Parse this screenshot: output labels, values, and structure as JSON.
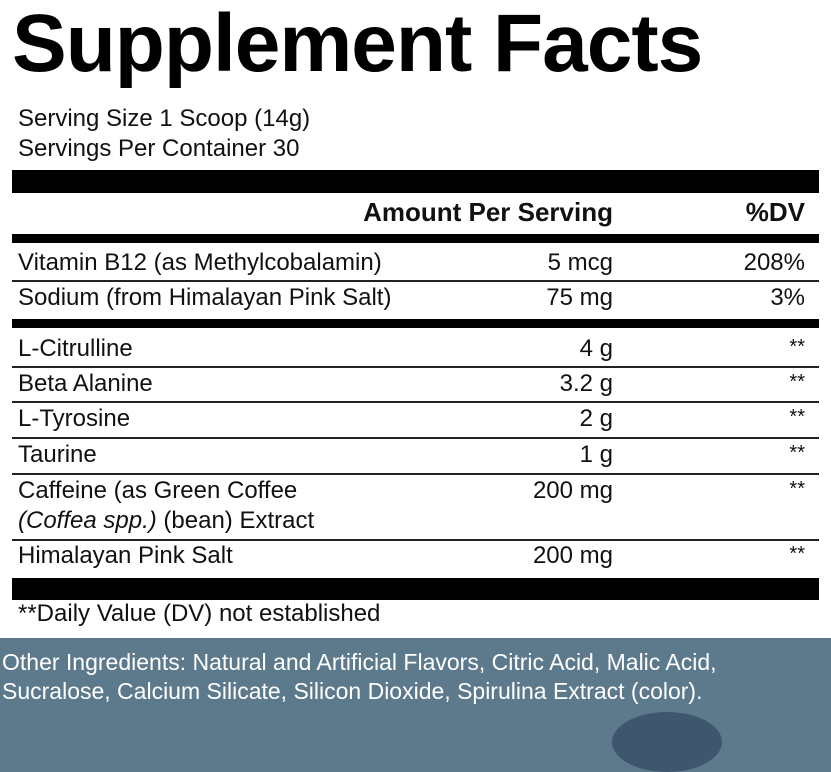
{
  "title": "Supplement Facts",
  "serving_size": "Serving Size 1 Scoop (14g)",
  "servings_per_container": "Servings Per Container 30",
  "header": {
    "amount": "Amount Per Serving",
    "dv": "%DV"
  },
  "vitamins": [
    {
      "name": "Vitamin B12 (as Methylcobalamin)",
      "amount": "5 mcg",
      "dv": "208%"
    },
    {
      "name": "Sodium (from Himalayan Pink Salt)",
      "amount": "75 mg",
      "dv": "3%"
    }
  ],
  "blend": [
    {
      "name": "L-Citrulline",
      "amount": "4 g",
      "dv": "**"
    },
    {
      "name": "Beta Alanine",
      "amount": "3.2 g",
      "dv": "**"
    },
    {
      "name": "L-Tyrosine",
      "amount": "2 g",
      "dv": "**"
    },
    {
      "name": "Taurine",
      "amount": "1 g",
      "dv": "**"
    },
    {
      "name": "Caffeine (as Green Coffee",
      "name_line2_italic": "(Coffea spp.)",
      "name_line2_rest": " (bean) Extract",
      "amount": "200 mg",
      "dv": "**"
    },
    {
      "name": "Himalayan Pink Salt",
      "amount": "200 mg",
      "dv": "**"
    }
  ],
  "footnote": "**Daily Value (DV) not established",
  "other_ingredients": {
    "line1": "Other Ingredients: Natural and Artificial Flavors, Citric Acid, Malic Acid,",
    "line2": "Sucralose, Calcium Silicate, Silicon Dioxide, Spirulina Extract (color)."
  }
}
